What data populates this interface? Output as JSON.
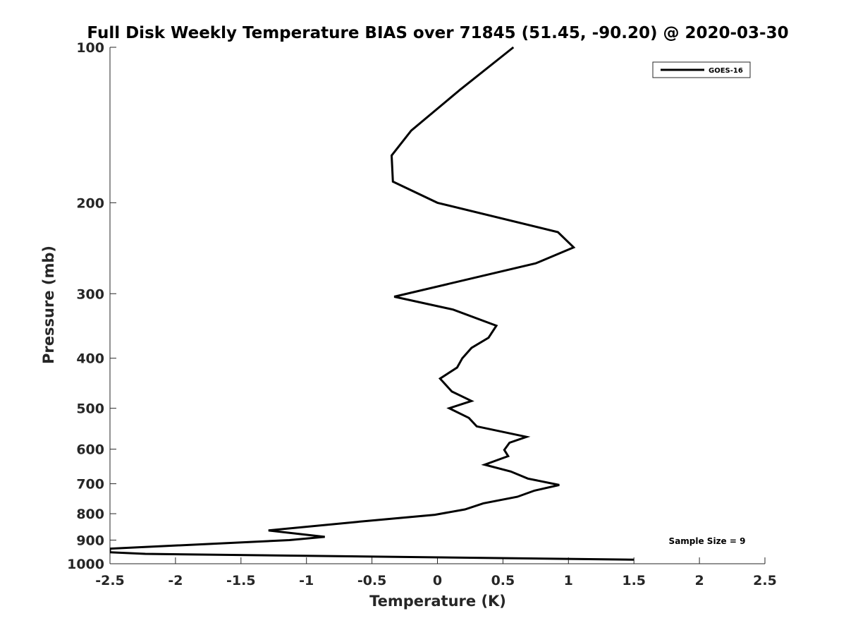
{
  "chart_data": {
    "type": "line",
    "title": "Full Disk Weekly Temperature BIAS over 71845 (51.45, -90.20) @ 2020-03-30",
    "xlabel": "Temperature (K)",
    "ylabel": "Pressure (mb)",
    "xlim": [
      -2.5,
      2.5
    ],
    "ylim": [
      100,
      1000
    ],
    "yscale": "log",
    "y_reversed": true,
    "grid": false,
    "legend_position": "top-right",
    "xticks": [
      -2.5,
      -2,
      -1.5,
      -1,
      -0.5,
      0,
      0.5,
      1,
      1.5,
      2,
      2.5
    ],
    "xtick_labels": [
      "-2.5",
      "-2",
      "-1.5",
      "-1",
      "-0.5",
      "0",
      "0.5",
      "1",
      "1.5",
      "2",
      "2.5"
    ],
    "yticks": [
      100,
      200,
      300,
      400,
      500,
      600,
      700,
      800,
      900,
      1000
    ],
    "ytick_labels": [
      "100",
      "200",
      "300",
      "400",
      "500",
      "600",
      "700",
      "800",
      "900",
      "1000"
    ],
    "series": [
      {
        "name": "GOES-16",
        "color": "#000000",
        "points": [
          {
            "x": 0.58,
            "y": 100
          },
          {
            "x": 0.17,
            "y": 121
          },
          {
            "x": -0.2,
            "y": 145
          },
          {
            "x": -0.35,
            "y": 162
          },
          {
            "x": -0.34,
            "y": 182
          },
          {
            "x": 0.0,
            "y": 200
          },
          {
            "x": 0.92,
            "y": 228
          },
          {
            "x": 1.04,
            "y": 244
          },
          {
            "x": 0.75,
            "y": 262
          },
          {
            "x": -0.33,
            "y": 304
          },
          {
            "x": 0.12,
            "y": 322
          },
          {
            "x": 0.45,
            "y": 346
          },
          {
            "x": 0.39,
            "y": 365
          },
          {
            "x": 0.26,
            "y": 382
          },
          {
            "x": 0.19,
            "y": 400
          },
          {
            "x": 0.15,
            "y": 417
          },
          {
            "x": 0.02,
            "y": 438
          },
          {
            "x": 0.11,
            "y": 464
          },
          {
            "x": 0.26,
            "y": 484
          },
          {
            "x": 0.09,
            "y": 500
          },
          {
            "x": 0.24,
            "y": 522
          },
          {
            "x": 0.3,
            "y": 542
          },
          {
            "x": 0.68,
            "y": 568
          },
          {
            "x": 0.55,
            "y": 583
          },
          {
            "x": 0.51,
            "y": 602
          },
          {
            "x": 0.54,
            "y": 619
          },
          {
            "x": 0.36,
            "y": 643
          },
          {
            "x": 0.56,
            "y": 663
          },
          {
            "x": 0.69,
            "y": 684
          },
          {
            "x": 0.93,
            "y": 704
          },
          {
            "x": 0.74,
            "y": 722
          },
          {
            "x": 0.61,
            "y": 742
          },
          {
            "x": 0.35,
            "y": 764
          },
          {
            "x": 0.21,
            "y": 785
          },
          {
            "x": -0.02,
            "y": 804
          },
          {
            "x": -0.53,
            "y": 826
          },
          {
            "x": -1.29,
            "y": 862
          },
          {
            "x": -0.86,
            "y": 887
          },
          {
            "x": -1.13,
            "y": 900
          },
          {
            "x": -2.5,
            "y": 935
          },
          {
            "x": -2.5,
            "y": 950
          },
          {
            "x": -2.23,
            "y": 957
          },
          {
            "x": 1.5,
            "y": 982
          }
        ]
      }
    ],
    "annotations": [
      "Sample Size = 9"
    ]
  }
}
